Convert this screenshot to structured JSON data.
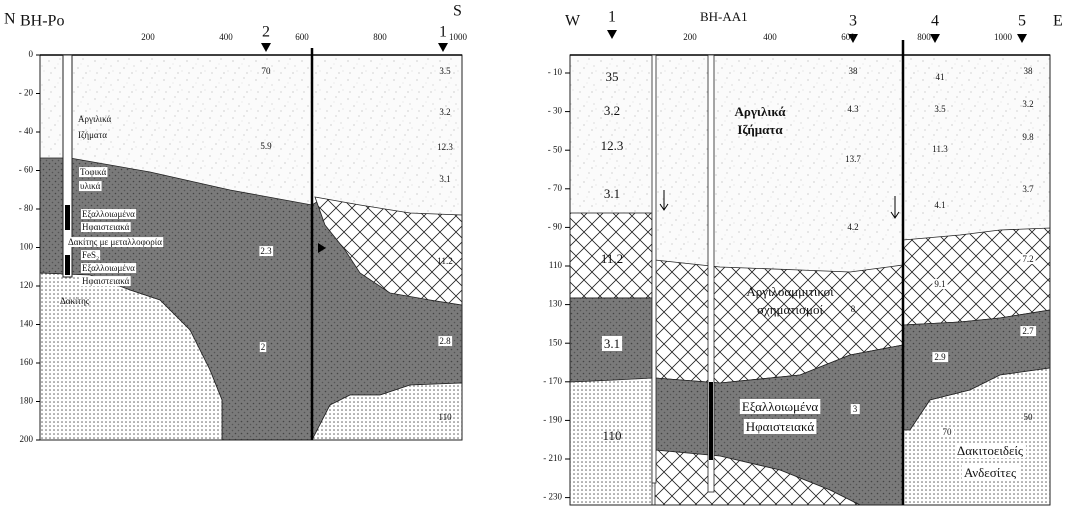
{
  "left_section": {
    "start": "N",
    "end": "S",
    "borehole": "BH-Po",
    "markers": [
      "2",
      "1"
    ],
    "distance_ticks": [
      "200",
      "400",
      "600",
      "800",
      "1000"
    ],
    "depth_ticks": [
      "0",
      "- 20",
      "- 40",
      "- 60",
      "- 80",
      "100",
      "120",
      "140",
      "160",
      "180",
      "200"
    ],
    "labels": [
      "70",
      "3.5",
      "Αργιλικά",
      "Ιζήματα",
      "5.9",
      "3.2",
      "12.3",
      "3.1",
      "Τοφικά",
      "υλικά",
      "Εξαλλοιωμένα",
      "Ηφαιστειακά",
      "Δακίτης με μεταλλοφορία",
      "FeS₂",
      "Εξαλλοιωμένα",
      "Ηφαιστειακά",
      "Δακίτης",
      "2.3",
      "11.2",
      "2",
      "2.8",
      "110"
    ]
  },
  "right_section": {
    "start": "W",
    "end": "E",
    "borehole": "BH-AA1",
    "markers": [
      "1",
      "3",
      "4",
      "5"
    ],
    "distance_ticks": [
      "200",
      "400",
      "600",
      "800",
      "1000"
    ],
    "depth_ticks": [
      "- 10",
      "- 30",
      "- 50",
      "- 70",
      "- 90",
      "110",
      "130",
      "150",
      "- 170",
      "- 190",
      "- 210",
      "- 230"
    ],
    "labels": [
      "35",
      "3.2",
      "12.3",
      "3.1",
      "11.2",
      "3.1",
      "110",
      "38",
      "4.3",
      "13.7",
      "4.2",
      "Αργιλικά",
      "Ιζήματα",
      "Αργιλοαμμιτικοί",
      "σχηματισμοί",
      "8",
      "Εξαλλοιωμένα",
      "Ηφαιστειακά",
      "3",
      "41",
      "3.5",
      "11.3",
      "4.1",
      "9.1",
      "2.9",
      "70",
      "Δακιτοειδείς",
      "Ανδεσίτες",
      "38",
      "3.2",
      "9.8",
      "3.7",
      "7.2",
      "2.7",
      "50"
    ]
  }
}
